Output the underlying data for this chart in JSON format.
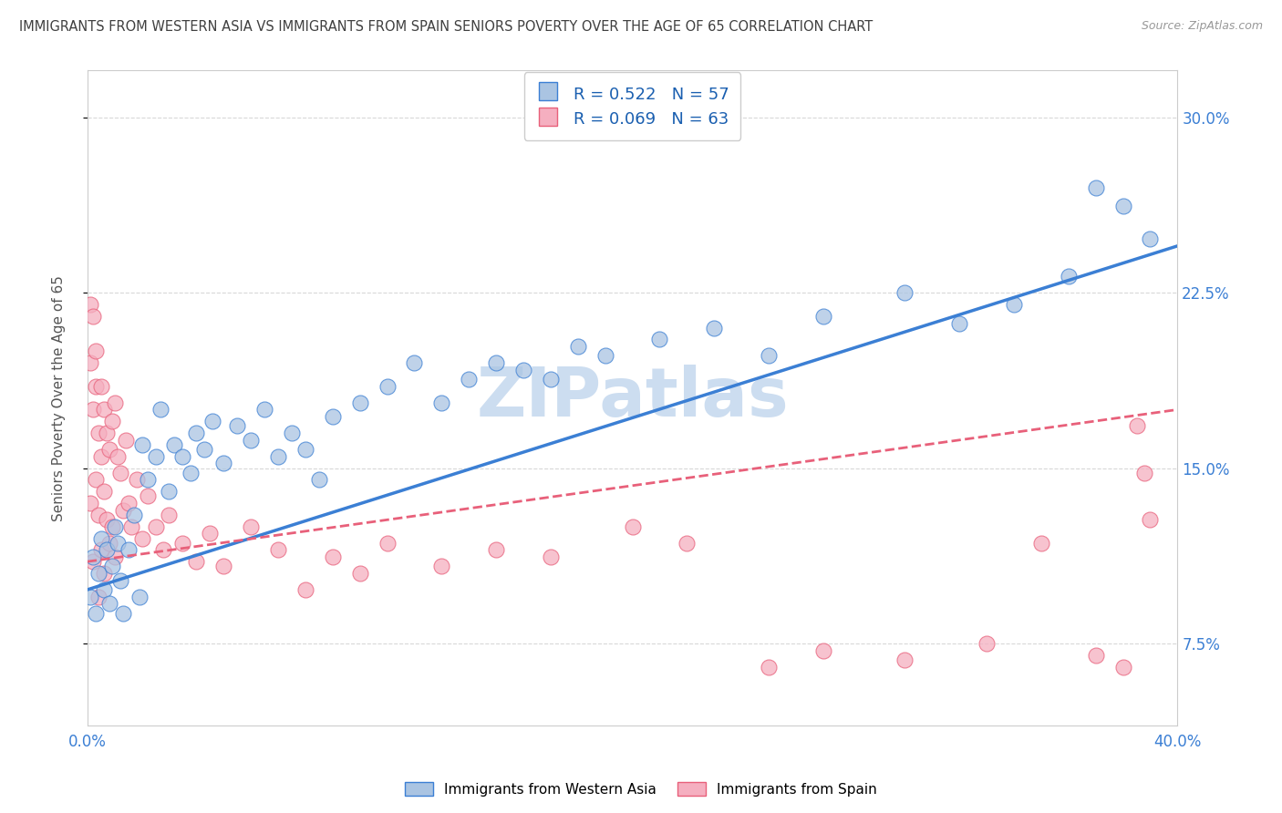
{
  "title": "IMMIGRANTS FROM WESTERN ASIA VS IMMIGRANTS FROM SPAIN SENIORS POVERTY OVER THE AGE OF 65 CORRELATION CHART",
  "source": "Source: ZipAtlas.com",
  "ylabel": "Seniors Poverty Over the Age of 65",
  "xlim": [
    0.0,
    0.4
  ],
  "ylim": [
    0.04,
    0.32
  ],
  "xticks": [
    0.0,
    0.1,
    0.2,
    0.3,
    0.4
  ],
  "xticklabels": [
    "0.0%",
    "",
    "",
    "",
    "40.0%"
  ],
  "yticks": [
    0.075,
    0.15,
    0.225,
    0.3
  ],
  "yticklabels": [
    "7.5%",
    "15.0%",
    "22.5%",
    "30.0%"
  ],
  "r_western_asia": 0.522,
  "n_western_asia": 57,
  "r_spain": 0.069,
  "n_spain": 63,
  "color_western_asia": "#aac4e2",
  "color_spain": "#f5afc0",
  "line_color_western_asia": "#3b7fd4",
  "line_color_spain": "#e8607a",
  "watermark": "ZIPatlas",
  "watermark_color": "#ccddf0",
  "background_color": "#ffffff",
  "grid_color": "#d8d8d8",
  "title_color": "#404040",
  "axis_label_color": "#555555",
  "tick_label_color_right": "#3b7fd4",
  "wa_line_y0": 0.098,
  "wa_line_y1": 0.245,
  "sp_line_y0": 0.11,
  "sp_line_y1": 0.175,
  "western_asia_x": [
    0.001,
    0.002,
    0.003,
    0.004,
    0.005,
    0.006,
    0.007,
    0.008,
    0.009,
    0.01,
    0.011,
    0.012,
    0.013,
    0.015,
    0.017,
    0.019,
    0.02,
    0.022,
    0.025,
    0.027,
    0.03,
    0.032,
    0.035,
    0.038,
    0.04,
    0.043,
    0.046,
    0.05,
    0.055,
    0.06,
    0.065,
    0.07,
    0.075,
    0.08,
    0.085,
    0.09,
    0.1,
    0.11,
    0.12,
    0.13,
    0.14,
    0.15,
    0.16,
    0.17,
    0.18,
    0.19,
    0.21,
    0.23,
    0.25,
    0.27,
    0.3,
    0.32,
    0.34,
    0.36,
    0.37,
    0.38,
    0.39
  ],
  "western_asia_y": [
    0.095,
    0.112,
    0.088,
    0.105,
    0.12,
    0.098,
    0.115,
    0.092,
    0.108,
    0.125,
    0.118,
    0.102,
    0.088,
    0.115,
    0.13,
    0.095,
    0.16,
    0.145,
    0.155,
    0.175,
    0.14,
    0.16,
    0.155,
    0.148,
    0.165,
    0.158,
    0.17,
    0.152,
    0.168,
    0.162,
    0.175,
    0.155,
    0.165,
    0.158,
    0.145,
    0.172,
    0.178,
    0.185,
    0.195,
    0.178,
    0.188,
    0.195,
    0.192,
    0.188,
    0.202,
    0.198,
    0.205,
    0.21,
    0.198,
    0.215,
    0.225,
    0.212,
    0.22,
    0.232,
    0.27,
    0.262,
    0.248
  ],
  "spain_x": [
    0.001,
    0.001,
    0.001,
    0.002,
    0.002,
    0.002,
    0.003,
    0.003,
    0.003,
    0.004,
    0.004,
    0.004,
    0.005,
    0.005,
    0.005,
    0.006,
    0.006,
    0.006,
    0.007,
    0.007,
    0.008,
    0.008,
    0.009,
    0.009,
    0.01,
    0.01,
    0.011,
    0.012,
    0.013,
    0.014,
    0.015,
    0.016,
    0.018,
    0.02,
    0.022,
    0.025,
    0.028,
    0.03,
    0.035,
    0.04,
    0.045,
    0.05,
    0.06,
    0.07,
    0.08,
    0.09,
    0.1,
    0.11,
    0.13,
    0.15,
    0.17,
    0.2,
    0.22,
    0.25,
    0.27,
    0.3,
    0.33,
    0.35,
    0.37,
    0.38,
    0.385,
    0.388,
    0.39
  ],
  "spain_y": [
    0.22,
    0.195,
    0.135,
    0.215,
    0.175,
    0.11,
    0.2,
    0.185,
    0.145,
    0.165,
    0.13,
    0.095,
    0.185,
    0.155,
    0.115,
    0.175,
    0.14,
    0.105,
    0.165,
    0.128,
    0.158,
    0.118,
    0.17,
    0.125,
    0.178,
    0.112,
    0.155,
    0.148,
    0.132,
    0.162,
    0.135,
    0.125,
    0.145,
    0.12,
    0.138,
    0.125,
    0.115,
    0.13,
    0.118,
    0.11,
    0.122,
    0.108,
    0.125,
    0.115,
    0.098,
    0.112,
    0.105,
    0.118,
    0.108,
    0.115,
    0.112,
    0.125,
    0.118,
    0.065,
    0.072,
    0.068,
    0.075,
    0.118,
    0.07,
    0.065,
    0.168,
    0.148,
    0.128
  ]
}
